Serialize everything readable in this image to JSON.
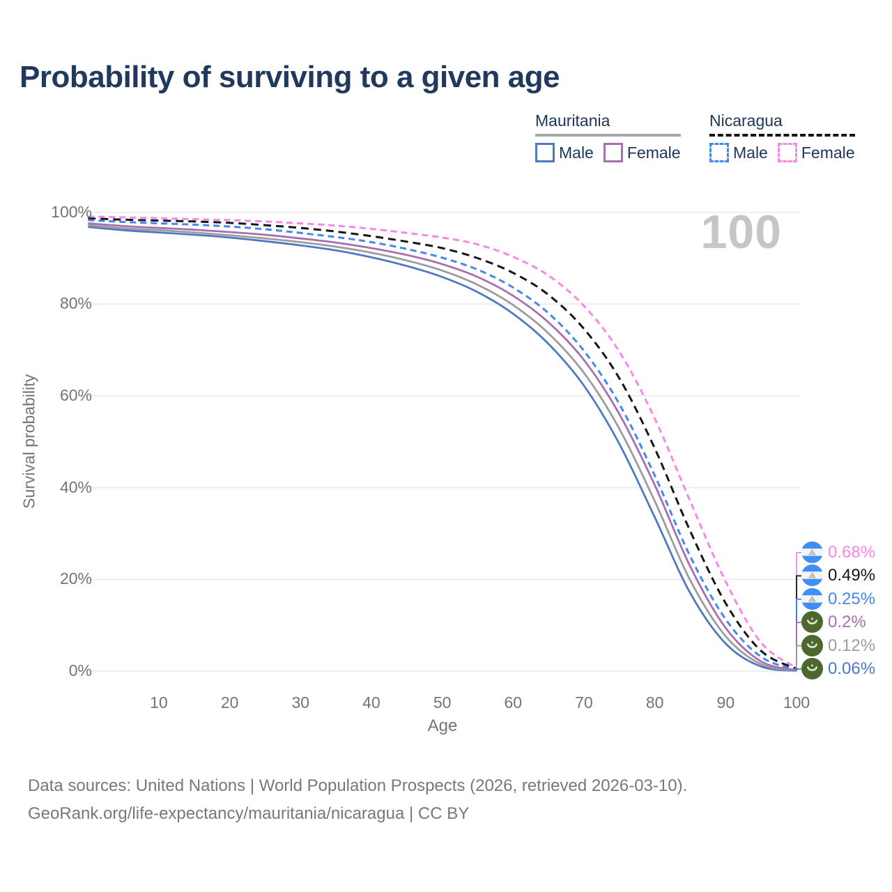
{
  "title": "Probability of surviving to a given age",
  "watermark": "100",
  "legend": {
    "groups": [
      {
        "label": "Mauritania",
        "line_style": "solid",
        "underline_color": "#a6a6a6",
        "items": [
          {
            "label": "Male",
            "color": "#4e79c2"
          },
          {
            "label": "Female",
            "color": "#a86fae"
          }
        ]
      },
      {
        "label": "Nicaragua",
        "line_style": "dashed",
        "underline_color": "#141414",
        "items": [
          {
            "label": "Male",
            "color": "#4189ee"
          },
          {
            "label": "Female",
            "color": "#f887e8"
          }
        ]
      }
    ]
  },
  "chart_data": {
    "type": "line",
    "title": "Probability of surviving to a given age",
    "xlabel": "Age",
    "ylabel": "Survival probability",
    "xlim": [
      0,
      100
    ],
    "ylim": [
      0,
      100
    ],
    "grid": "horizontal",
    "legend_position": "top-right",
    "xticks": [
      "10",
      "20",
      "30",
      "40",
      "50",
      "60",
      "70",
      "80",
      "90",
      "100"
    ],
    "xtick_values": [
      10,
      20,
      30,
      40,
      50,
      60,
      70,
      80,
      90,
      100
    ],
    "yticks": [
      "0%",
      "20%",
      "40%",
      "60%",
      "80%",
      "100%"
    ],
    "ytick_values": [
      0,
      20,
      40,
      60,
      80,
      100
    ],
    "x": [
      0,
      5,
      10,
      15,
      20,
      25,
      30,
      35,
      40,
      45,
      50,
      55,
      60,
      65,
      70,
      75,
      80,
      85,
      90,
      95,
      100
    ],
    "series": [
      {
        "id": "nicaragua-female",
        "name": "Nicaragua Female",
        "color": "#f887e8",
        "dash": true,
        "end_label": "0.68%",
        "flag": "nicaragua",
        "values": [
          99.1,
          98.9,
          98.7,
          98.5,
          98.3,
          98.0,
          97.6,
          97.1,
          96.4,
          95.5,
          94.5,
          93.0,
          90.3,
          86.2,
          79.6,
          69.6,
          55.0,
          37.0,
          19.5,
          6.2,
          0.68
        ]
      },
      {
        "id": "nicaragua-both",
        "name": "Nicaragua",
        "color": "#151515",
        "dash": true,
        "end_label": "0.49%",
        "flag": "nicaragua",
        "values": [
          98.7,
          98.4,
          98.2,
          98.0,
          97.7,
          97.2,
          96.6,
          95.8,
          94.8,
          93.6,
          92.2,
          90.0,
          86.8,
          82.0,
          74.6,
          63.8,
          48.5,
          30.5,
          14.8,
          4.4,
          0.49
        ]
      },
      {
        "id": "nicaragua-male",
        "name": "Nicaragua Male",
        "color": "#4189ee",
        "dash": true,
        "end_label": "0.25%",
        "flag": "nicaragua",
        "values": [
          98.3,
          97.9,
          97.6,
          97.3,
          96.9,
          96.3,
          95.5,
          94.6,
          93.5,
          92.0,
          90.1,
          87.5,
          83.6,
          78.0,
          69.8,
          58.2,
          42.6,
          25.0,
          11.3,
          3.1,
          0.25
        ]
      },
      {
        "id": "mauritania-female",
        "name": "Mauritania Female",
        "color": "#a86fae",
        "dash": false,
        "end_label": "0.2%",
        "flag": "mauritania",
        "values": [
          97.6,
          97.0,
          96.6,
          96.2,
          95.7,
          95.1,
          94.3,
          93.4,
          92.2,
          90.7,
          88.7,
          85.9,
          81.8,
          76.0,
          67.8,
          56.0,
          40.5,
          22.8,
          9.4,
          2.1,
          0.2
        ]
      },
      {
        "id": "mauritania-both",
        "name": "Mauritania",
        "color": "#9c9c9c",
        "dash": false,
        "end_label": "0.12%",
        "flag": "mauritania",
        "values": [
          97.2,
          96.5,
          96.1,
          95.6,
          95.0,
          94.3,
          93.5,
          92.5,
          91.2,
          89.5,
          87.3,
          84.2,
          79.8,
          73.6,
          65.0,
          52.8,
          37.0,
          19.8,
          7.6,
          1.5,
          0.12
        ]
      },
      {
        "id": "mauritania-male",
        "name": "Mauritania Male",
        "color": "#4e79c2",
        "dash": false,
        "end_label": "0.06%",
        "flag": "mauritania",
        "values": [
          96.8,
          96.1,
          95.6,
          95.1,
          94.5,
          93.7,
          92.8,
          91.7,
          90.2,
          88.3,
          85.9,
          82.6,
          77.9,
          71.3,
          62.2,
          49.5,
          33.5,
          17.0,
          6.0,
          1.0,
          0.06
        ]
      }
    ]
  },
  "footer": {
    "line1": "Data sources: United Nations | World Population Prospects (2026, retrieved 2026-03-10).",
    "line2": "GeoRank.org/life-expectancy/mauritania/nicaragua | CC BY"
  }
}
